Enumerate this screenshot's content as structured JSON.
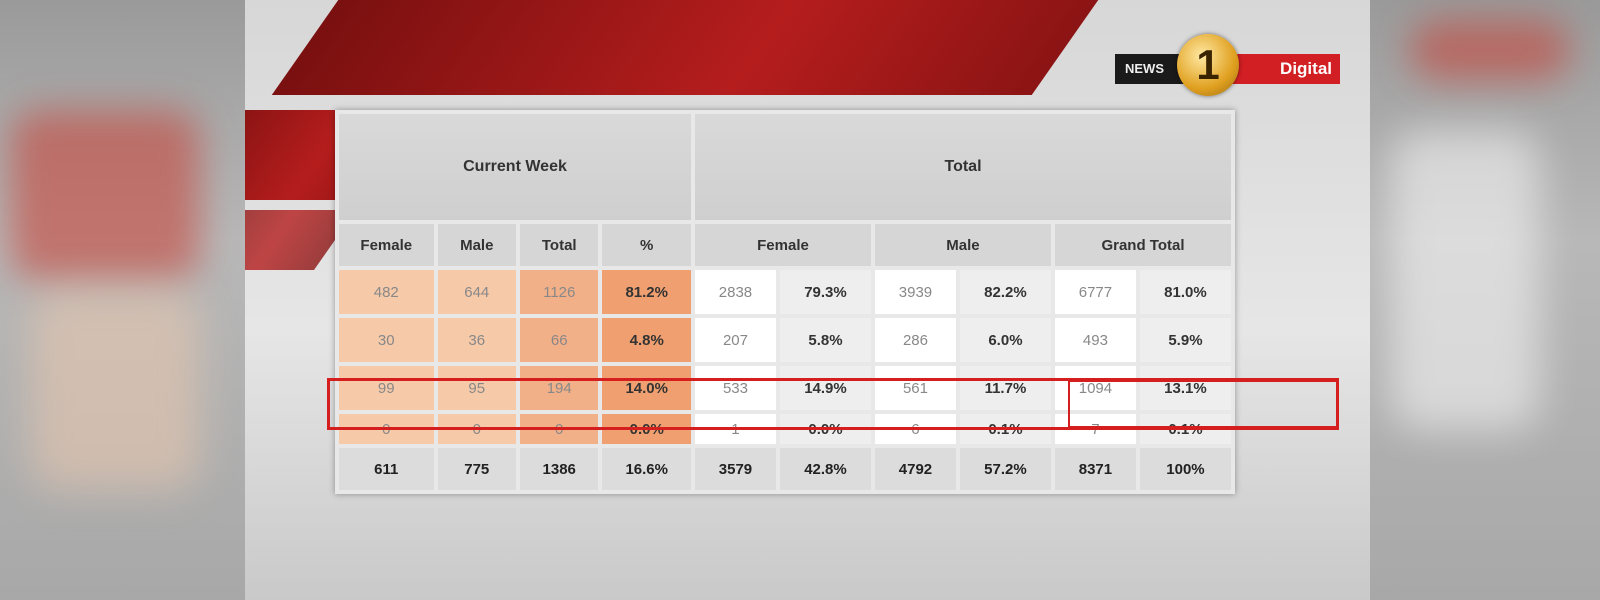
{
  "logo": {
    "left_text": "NEWS",
    "number": "1",
    "right_text": "Digital"
  },
  "table": {
    "group_headers": [
      "Current Week",
      "Total"
    ],
    "current_week_headers": [
      "Female",
      "Male",
      "Total",
      "%"
    ],
    "total_headers": [
      "Female",
      "Male",
      "Grand Total"
    ],
    "rows": [
      [
        "482",
        "644",
        "1126",
        "81.2%",
        "2838",
        "79.3%",
        "3939",
        "82.2%",
        "6777",
        "81.0%"
      ],
      [
        "30",
        "36",
        "66",
        "4.8%",
        "207",
        "5.8%",
        "286",
        "6.0%",
        "493",
        "5.9%"
      ],
      [
        "99",
        "95",
        "194",
        "14.0%",
        "533",
        "14.9%",
        "561",
        "11.7%",
        "1094",
        "13.1%"
      ],
      [
        "0",
        "0",
        "0",
        "0.0%",
        "1",
        "0.0%",
        "6",
        "0.1%",
        "7",
        "0.1%"
      ]
    ],
    "totals": [
      "611",
      "775",
      "1386",
      "16.6%",
      "3579",
      "42.8%",
      "4792",
      "57.2%",
      "8371",
      "100%"
    ],
    "highlighted_row_index": 2
  }
}
